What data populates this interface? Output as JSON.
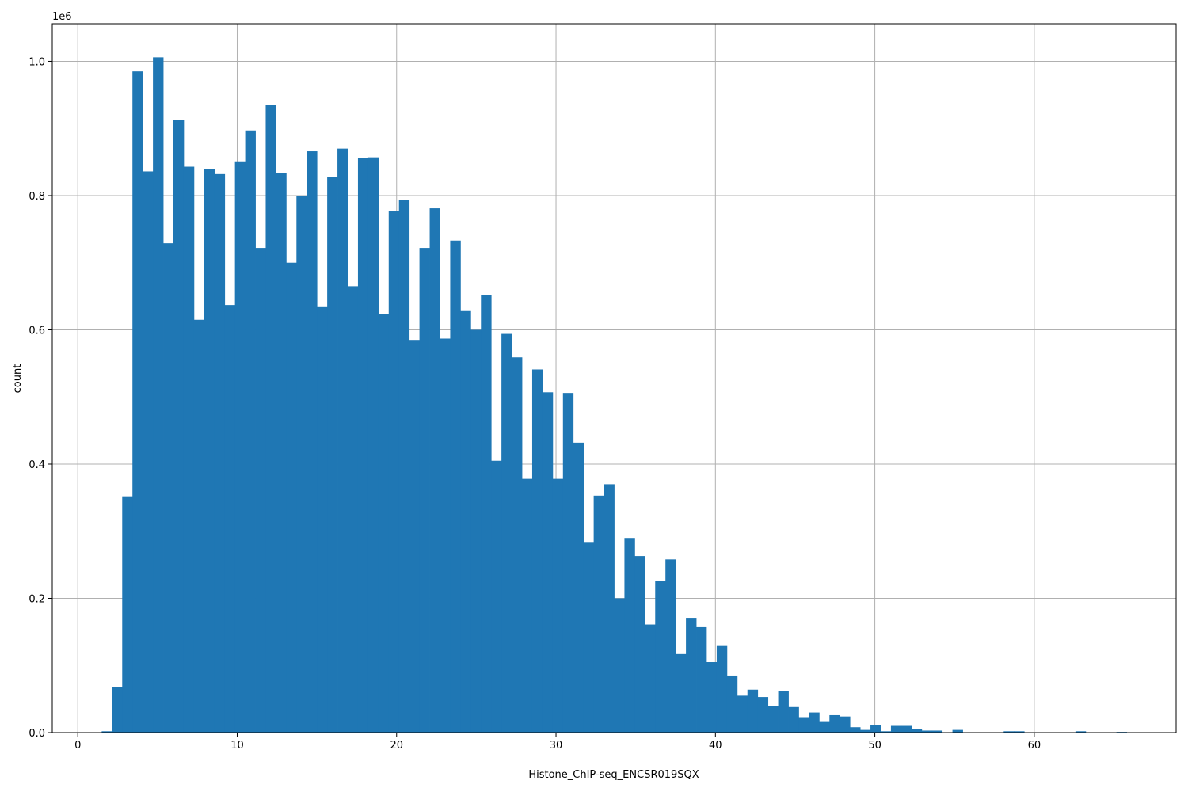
{
  "chart_data": {
    "type": "bar",
    "subtype": "histogram",
    "title": "",
    "xlabel": "Histone_ChIP-seq_ENCSR019SQX",
    "ylabel": "count",
    "y_multiplier_label": "1e6",
    "xlim": [
      -1.6,
      68.9
    ],
    "ylim": [
      0,
      1.056
    ],
    "x_ticks": [
      0,
      10,
      20,
      30,
      40,
      50,
      60
    ],
    "y_ticks": [
      0.0,
      0.2,
      0.4,
      0.6,
      0.8,
      1.0
    ],
    "y_tick_labels": [
      "0.0",
      "0.2",
      "0.4",
      "0.6",
      "0.8",
      "1.0"
    ],
    "grid": true,
    "bar_color": "#1f77b4",
    "bin_start": 1.5,
    "bin_width": 0.643,
    "values_unit": "millions",
    "values": [
      0.002,
      0.068,
      0.352,
      0.985,
      0.836,
      1.006,
      0.729,
      0.913,
      0.843,
      0.615,
      0.839,
      0.832,
      0.637,
      0.851,
      0.897,
      0.722,
      0.935,
      0.833,
      0.7,
      0.8,
      0.866,
      0.635,
      0.828,
      0.87,
      0.665,
      0.856,
      0.857,
      0.623,
      0.777,
      0.793,
      0.585,
      0.722,
      0.781,
      0.587,
      0.733,
      0.628,
      0.6,
      0.652,
      0.405,
      0.594,
      0.559,
      0.378,
      0.541,
      0.507,
      0.378,
      0.506,
      0.432,
      0.284,
      0.353,
      0.37,
      0.2,
      0.29,
      0.263,
      0.161,
      0.226,
      0.258,
      0.117,
      0.171,
      0.157,
      0.105,
      0.129,
      0.085,
      0.055,
      0.064,
      0.053,
      0.039,
      0.062,
      0.038,
      0.023,
      0.03,
      0.017,
      0.026,
      0.024,
      0.008,
      0.004,
      0.011,
      0.002,
      0.01,
      0.01,
      0.005,
      0.003,
      0.003,
      0.0,
      0.004,
      0.0,
      0.0,
      0.0,
      0.0,
      0.002,
      0.002,
      0.0,
      0.0,
      0.0,
      0.0,
      0.0,
      0.002,
      0.0,
      0.0,
      0.0,
      0.001
    ]
  }
}
